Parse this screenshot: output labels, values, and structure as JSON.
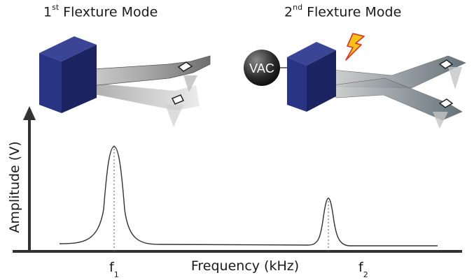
{
  "titles": {
    "mode1_ordinal": "1",
    "mode1_suffix": "st",
    "mode1_rest": " Flexture Mode",
    "mode2_ordinal": "2",
    "mode2_suffix": "nd",
    "mode2_rest": " Flexture Mode"
  },
  "vac_label": "VAC",
  "axes": {
    "y_label": "Amplitude (V)",
    "x_label": "Frequency (kHz)"
  },
  "peaks": {
    "f1_letter": "f",
    "f1_sub": "1",
    "f2_letter": "f",
    "f2_sub": "2"
  },
  "colors": {
    "block": "#232c74",
    "beam": "#8a8a8a",
    "lightning": "#f3c21b",
    "curve": "#333333"
  }
}
